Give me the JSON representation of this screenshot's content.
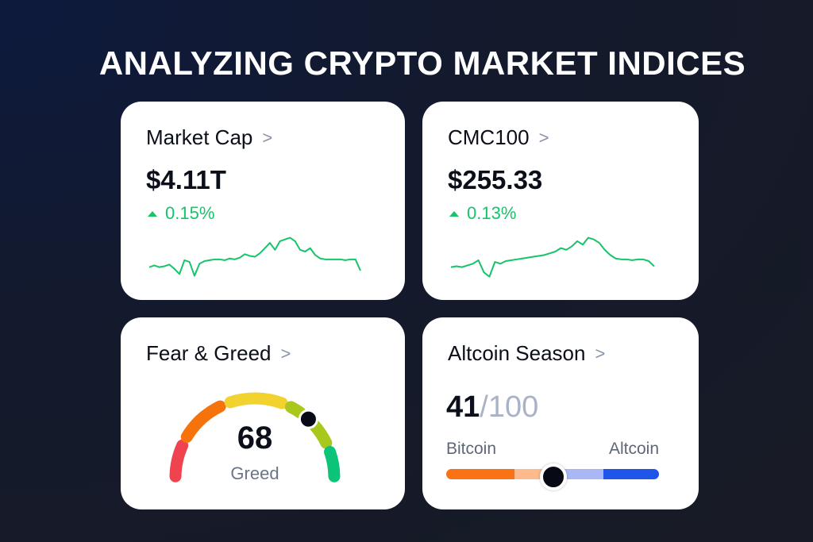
{
  "title": "ANALYZING CRYPTO MARKET INDICES",
  "colors": {
    "up": "#16c46a",
    "red": "#ef4350",
    "orange": "#f5730a",
    "yellow": "#f2d22e",
    "lime": "#a9c81e",
    "green": "#0bc47a",
    "btc": "#f97316",
    "btc_light": "#fdba8c",
    "alt_light": "#a9b8f5",
    "alt": "#1f55e8"
  },
  "market_cap": {
    "label": "Market Cap",
    "chevron": ">",
    "value": "$4.11T",
    "change": "0.15%",
    "icon": "triangle-up-icon",
    "spark": [
      40,
      42,
      40,
      41,
      43,
      38,
      32,
      48,
      46,
      30,
      44,
      47,
      48,
      49,
      49,
      48,
      50,
      49,
      51,
      55,
      53,
      52,
      56,
      62,
      68,
      60,
      70,
      72,
      74,
      70,
      60,
      58,
      62,
      54,
      50,
      49,
      49,
      49,
      49,
      48,
      49,
      49,
      36
    ]
  },
  "cmc100": {
    "label": "CMC100",
    "chevron": ">",
    "value": "$255.33",
    "change": "0.13%",
    "icon": "triangle-up-icon",
    "spark": [
      40,
      41,
      40,
      42,
      44,
      48,
      34,
      29,
      46,
      44,
      47,
      48,
      49,
      50,
      51,
      52,
      53,
      54,
      56,
      58,
      62,
      60,
      64,
      70,
      66,
      74,
      72,
      68,
      60,
      54,
      50,
      49,
      49,
      48,
      49,
      49,
      47,
      41
    ]
  },
  "fear_greed": {
    "label": "Fear & Greed",
    "chevron": ">",
    "value": 68,
    "max": 100,
    "status": "Greed"
  },
  "altcoin_season": {
    "label": "Altcoin Season",
    "chevron": ">",
    "value": "41",
    "max": "/100",
    "left_label": "Bitcoin",
    "right_label": "Altcoin"
  }
}
